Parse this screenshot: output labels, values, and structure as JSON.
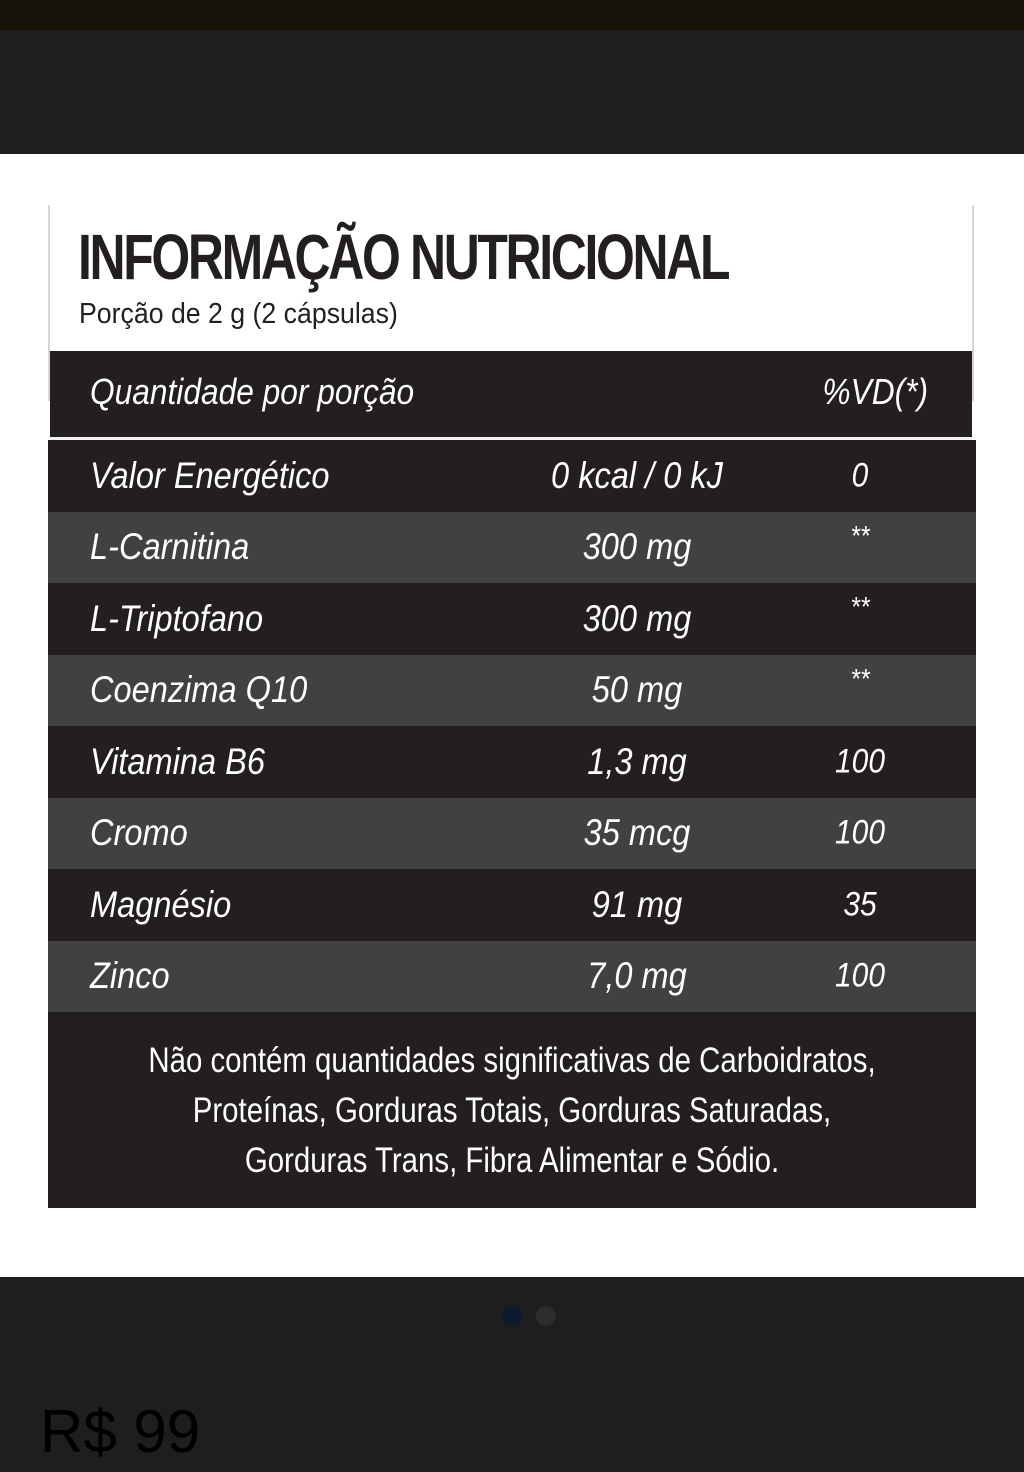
{
  "colors": {
    "page_background": "#1f1e1f",
    "label_dark_row": "#231f20",
    "label_light_row": "#414143",
    "carousel_active_dot": "#0c1a2e",
    "carousel_inactive_dot": "#2d2d30"
  },
  "label": {
    "title": "INFORMAÇÃO NUTRICIONAL",
    "serving": "Porção de 2 g (2 cápsulas)",
    "header": {
      "quantity_label": "Quantidade por porção",
      "vd_label": "%VD(*)"
    },
    "rows": [
      {
        "name": "Valor Energético",
        "amount": "0 kcal / 0 kJ",
        "vd": "0"
      },
      {
        "name": "L-Carnitina",
        "amount": "300 mg",
        "vd": "**"
      },
      {
        "name": "L-Triptofano",
        "amount": "300 mg",
        "vd": "**"
      },
      {
        "name": "Coenzima Q10",
        "amount": "50 mg",
        "vd": "**"
      },
      {
        "name": "Vitamina B6",
        "amount": "1,3 mg",
        "vd": "100"
      },
      {
        "name": "Cromo",
        "amount": "35 mcg",
        "vd": "100"
      },
      {
        "name": "Magnésio",
        "amount": "91 mg",
        "vd": "35"
      },
      {
        "name": "Zinco",
        "amount": "7,0 mg",
        "vd": "100"
      }
    ],
    "footnote": "Não contém quantidades significativas de Carboidratos, Proteínas, Gorduras Totais, Gorduras Saturadas, Gorduras Trans, Fibra Alimentar e Sódio."
  },
  "carousel": {
    "slide_count": 2,
    "active_index": 0
  },
  "price": {
    "text": "R$ 99"
  }
}
